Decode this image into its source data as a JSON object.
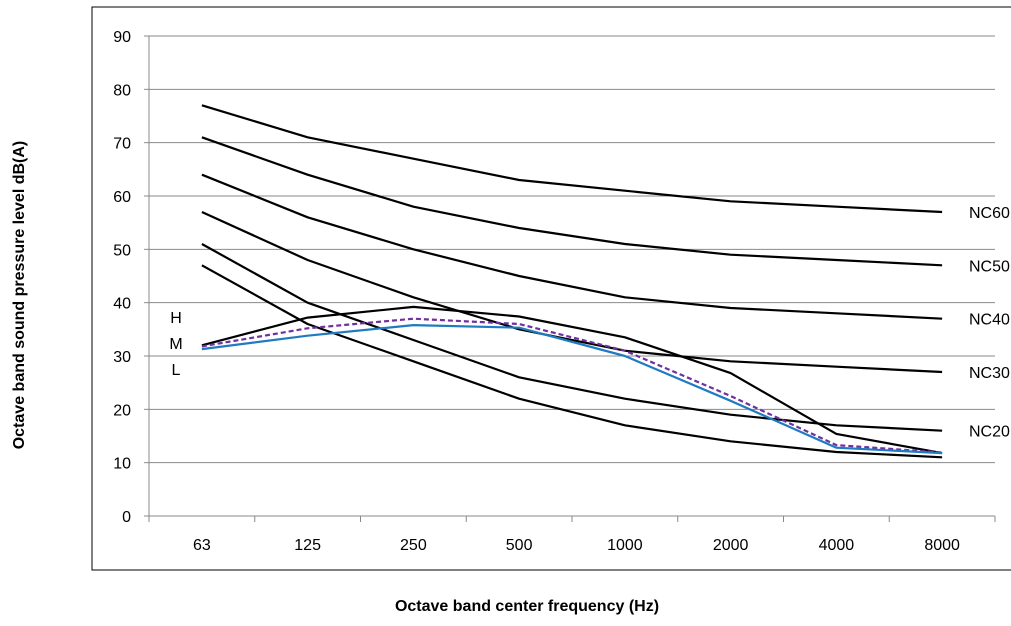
{
  "chart_data": {
    "type": "line",
    "title": "",
    "xlabel": "Octave band center frequency (Hz)",
    "ylabel": "Octave band sound pressure level dB(A)",
    "categories": [
      "63",
      "125",
      "250",
      "500",
      "1000",
      "2000",
      "4000",
      "8000"
    ],
    "ylim": [
      0,
      90
    ],
    "yticks": [
      "0",
      "10",
      "20",
      "30",
      "40",
      "50",
      "60",
      "70",
      "80",
      "90"
    ],
    "grid": "horizontal",
    "legend": "none",
    "nc_curves": [
      {
        "name": "NC60",
        "color": "#000000",
        "values": [
          77,
          71,
          67,
          63,
          61,
          59,
          58,
          57
        ]
      },
      {
        "name": "NC50",
        "color": "#000000",
        "values": [
          71,
          64,
          58,
          54,
          51,
          49,
          48,
          47
        ]
      },
      {
        "name": "NC40",
        "color": "#000000",
        "values": [
          64,
          56,
          50,
          45,
          41,
          39,
          38,
          37
        ]
      },
      {
        "name": "NC30",
        "color": "#000000",
        "values": [
          57,
          48,
          41,
          35,
          31,
          29,
          28,
          27
        ]
      },
      {
        "name": "NC20",
        "color": "#000000",
        "values": [
          51,
          40,
          33,
          26,
          22,
          19,
          17,
          16
        ]
      },
      {
        "name": "",
        "color": "#000000",
        "values": [
          47,
          36,
          29,
          22,
          17,
          14,
          12,
          11
        ]
      }
    ],
    "fan_curves": [
      {
        "name": "H",
        "color": "#000000",
        "dash": "solid",
        "values": [
          32,
          37.2,
          39.2,
          37.4,
          33.5,
          26.8,
          15.4,
          11.8
        ]
      },
      {
        "name": "M",
        "color": "#7030a0",
        "dash": "dashed",
        "values": [
          31.8,
          35.2,
          37.0,
          36.0,
          31.0,
          22.5,
          13.3,
          11.9
        ]
      },
      {
        "name": "L",
        "color": "#1f7bc1",
        "dash": "solid",
        "values": [
          31.3,
          33.8,
          35.8,
          35.3,
          30.0,
          21.6,
          12.8,
          11.8
        ]
      }
    ]
  }
}
